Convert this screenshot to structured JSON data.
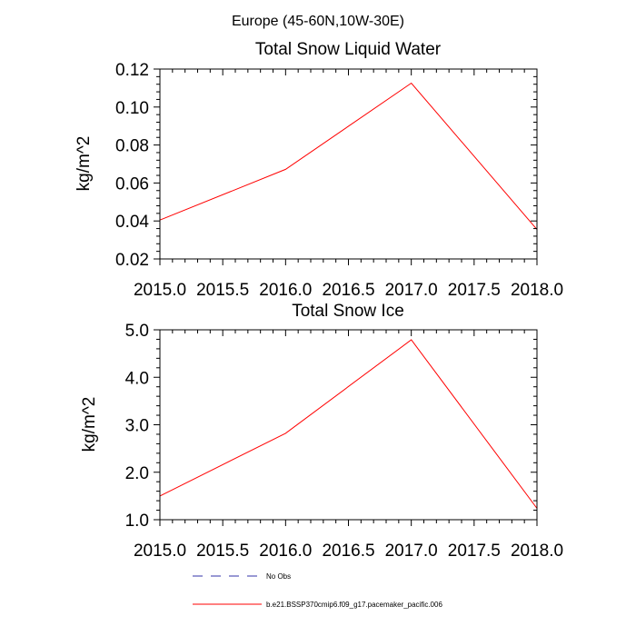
{
  "figure": {
    "suptitle": "Europe (45-60N,10W-30E)"
  },
  "chart_data": [
    {
      "type": "line",
      "title": "Total Snow Liquid Water",
      "xlabel": "",
      "ylabel": "kg/m^2",
      "xlim": [
        2015.0,
        2018.0
      ],
      "ylim": [
        0.02,
        0.12
      ],
      "xticks": [
        2015.0,
        2015.5,
        2016.0,
        2016.5,
        2017.0,
        2017.5,
        2018.0
      ],
      "xtick_labels": [
        "2015.0",
        "2015.5",
        "2016.0",
        "2016.5",
        "2017.0",
        "2017.5",
        "2018.0"
      ],
      "yticks": [
        0.02,
        0.04,
        0.06,
        0.08,
        0.1,
        0.12
      ],
      "ytick_labels": [
        "0.02",
        "0.04",
        "0.06",
        "0.08",
        "0.10",
        "0.12"
      ],
      "series": [
        {
          "name": "b.e21.BSSP370cmip6.f09_g17.pacemaker_pacific.006",
          "color": "#ff0000",
          "x": [
            2015,
            2016,
            2017,
            2018
          ],
          "y": [
            0.0405,
            0.0672,
            0.1126,
            0.0355
          ]
        }
      ]
    },
    {
      "type": "line",
      "title": "Total Snow Ice",
      "xlabel": "",
      "ylabel": "kg/m^2",
      "xlim": [
        2015.0,
        2018.0
      ],
      "ylim": [
        1.0,
        5.0
      ],
      "xticks": [
        2015.0,
        2015.5,
        2016.0,
        2016.5,
        2017.0,
        2017.5,
        2018.0
      ],
      "xtick_labels": [
        "2015.0",
        "2015.5",
        "2016.0",
        "2016.5",
        "2017.0",
        "2017.5",
        "2018.0"
      ],
      "yticks": [
        1.0,
        2.0,
        3.0,
        4.0,
        5.0
      ],
      "ytick_labels": [
        "1.0",
        "2.0",
        "3.0",
        "4.0",
        "5.0"
      ],
      "series": [
        {
          "name": "b.e21.BSSP370cmip6.f09_g17.pacemaker_pacific.006",
          "color": "#ff0000",
          "x": [
            2015,
            2016,
            2017,
            2018
          ],
          "y": [
            1.5,
            2.82,
            4.79,
            1.24
          ]
        }
      ]
    }
  ],
  "legend": {
    "placement": "bottom",
    "items": [
      {
        "label": "No Obs",
        "color": "#3333aa",
        "style": "dashed"
      },
      {
        "label": "b.e21.BSSP370cmip6.f09_g17.pacemaker_pacific.006",
        "color": "#ff0000",
        "style": "solid"
      }
    ]
  }
}
